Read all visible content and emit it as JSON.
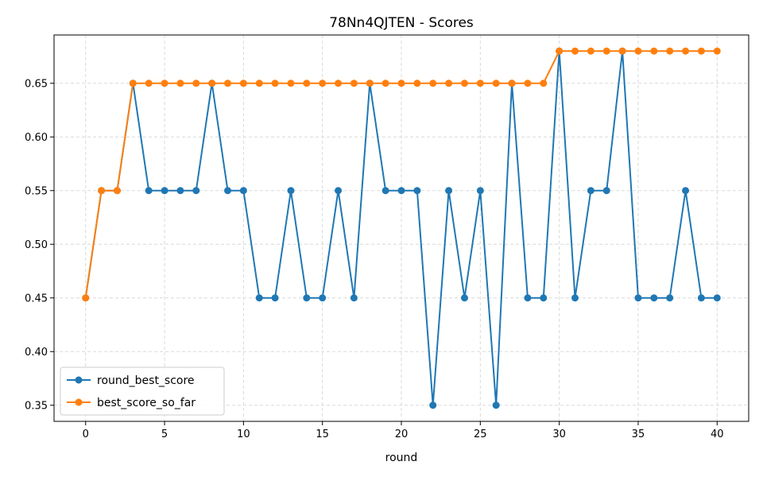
{
  "chart_data": {
    "type": "line",
    "title": "78Nn4QJTEN - Scores",
    "xlabel": "round",
    "ylabel": "",
    "xlim": [
      -2,
      42
    ],
    "ylim": [
      0.335,
      0.695
    ],
    "xticks": [
      0,
      5,
      10,
      15,
      20,
      25,
      30,
      35,
      40
    ],
    "xtick_labels": [
      "0",
      "5",
      "10",
      "15",
      "20",
      "25",
      "30",
      "35",
      "40"
    ],
    "yticks": [
      0.35,
      0.4,
      0.45,
      0.5,
      0.55,
      0.6,
      0.65
    ],
    "ytick_labels": [
      "0.35",
      "0.40",
      "0.45",
      "0.50",
      "0.55",
      "0.60",
      "0.65"
    ],
    "grid": true,
    "legend_position": "lower-left",
    "x": [
      0,
      1,
      2,
      3,
      4,
      5,
      6,
      7,
      8,
      9,
      10,
      11,
      12,
      13,
      14,
      15,
      16,
      17,
      18,
      19,
      20,
      21,
      22,
      23,
      24,
      25,
      26,
      27,
      28,
      29,
      30,
      31,
      32,
      33,
      34,
      35,
      36,
      37,
      38,
      39,
      40
    ],
    "series": [
      {
        "name": "round_best_score",
        "color": "#1f77b4",
        "values": [
          0.45,
          0.55,
          0.55,
          0.65,
          0.55,
          0.55,
          0.55,
          0.55,
          0.65,
          0.55,
          0.55,
          0.45,
          0.45,
          0.55,
          0.45,
          0.45,
          0.55,
          0.45,
          0.65,
          0.55,
          0.55,
          0.55,
          0.35,
          0.55,
          0.45,
          0.55,
          0.35,
          0.65,
          0.45,
          0.45,
          0.68,
          0.45,
          0.55,
          0.55,
          0.68,
          0.45,
          0.45,
          0.45,
          0.55,
          0.45,
          0.45
        ]
      },
      {
        "name": "best_score_so_far",
        "color": "#ff7f0e",
        "values": [
          0.45,
          0.55,
          0.55,
          0.65,
          0.65,
          0.65,
          0.65,
          0.65,
          0.65,
          0.65,
          0.65,
          0.65,
          0.65,
          0.65,
          0.65,
          0.65,
          0.65,
          0.65,
          0.65,
          0.65,
          0.65,
          0.65,
          0.65,
          0.65,
          0.65,
          0.65,
          0.65,
          0.65,
          0.65,
          0.65,
          0.68,
          0.68,
          0.68,
          0.68,
          0.68,
          0.68,
          0.68,
          0.68,
          0.68,
          0.68,
          0.68
        ]
      }
    ]
  }
}
